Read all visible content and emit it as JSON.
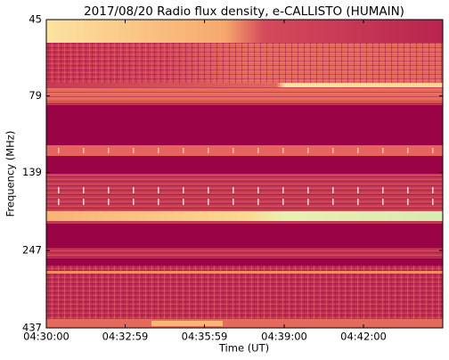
{
  "chart_data": {
    "type": "spectrogram",
    "title": "2017/08/20  Radio flux density, e-CALLISTO (HUMAIN)",
    "xlabel": "Time (UT)",
    "ylabel": "Frequency (MHz)",
    "xlim": [
      0,
      900
    ],
    "xticks": [
      {
        "value": 0,
        "label": "04:30:00"
      },
      {
        "value": 179,
        "label": "04:32:59"
      },
      {
        "value": 359,
        "label": "04:35:59"
      },
      {
        "value": 540,
        "label": "04:39:00"
      },
      {
        "value": 720,
        "label": "04:42:00"
      }
    ],
    "ylim": [
      45,
      437
    ],
    "yticks": [
      45,
      79,
      139,
      247,
      437
    ],
    "yscale": "log",
    "y_inverted": true
  }
}
